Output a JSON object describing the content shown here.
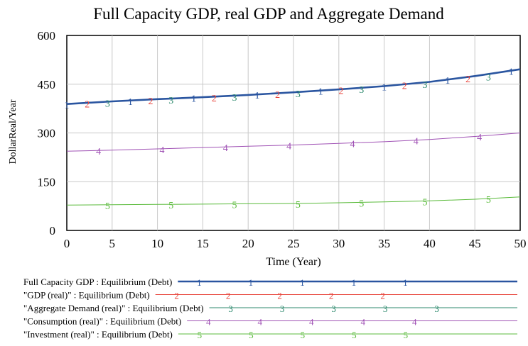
{
  "chart_data": {
    "type": "line",
    "title": "Full Capacity GDP, real GDP and Aggregate Demand",
    "xlabel": "Time (Year)",
    "ylabel": "DollarReal/Year",
    "xlim": [
      0,
      50
    ],
    "ylim": [
      0,
      600
    ],
    "x_ticks": [
      0,
      5,
      10,
      15,
      20,
      25,
      30,
      35,
      40,
      45,
      50
    ],
    "y_ticks": [
      0,
      150,
      300,
      450,
      600
    ],
    "grid": true,
    "legend_position": "bottom",
    "x": [
      0,
      5,
      10,
      15,
      20,
      25,
      30,
      35,
      40,
      45,
      50
    ],
    "series": [
      {
        "name": "Full Capacity GDP : Equilibrium (Debt)",
        "marker": "1",
        "color": "#2a55a0",
        "values": [
          389,
          397,
          404,
          410,
          417,
          425,
          434,
          444,
          457,
          475,
          496
        ]
      },
      {
        "name": "\"GDP (real)\" : Equilibrium (Debt)",
        "marker": "2",
        "color": "#e8433a",
        "values": [
          389,
          397,
          404,
          410,
          417,
          425,
          434,
          444,
          457,
          475,
          496
        ]
      },
      {
        "name": "\"Aggregate Demand (real)\" : Equilibrium (Debt)",
        "marker": "3",
        "color": "#2e8a6e",
        "values": [
          389,
          397,
          404,
          410,
          417,
          425,
          434,
          444,
          457,
          475,
          496
        ]
      },
      {
        "name": "\"Consumption (real)\" : Equilibrium (Debt)",
        "marker": "4",
        "color": "#a052b5",
        "values": [
          244,
          247,
          251,
          255,
          259,
          263,
          268,
          273,
          280,
          289,
          300
        ]
      },
      {
        "name": "\"Investment (real)\" : Equilibrium (Debt)",
        "marker": "5",
        "color": "#5bbb3c",
        "values": [
          78,
          79,
          80,
          81,
          82,
          83,
          85,
          88,
          91,
          96,
          103
        ]
      }
    ]
  }
}
